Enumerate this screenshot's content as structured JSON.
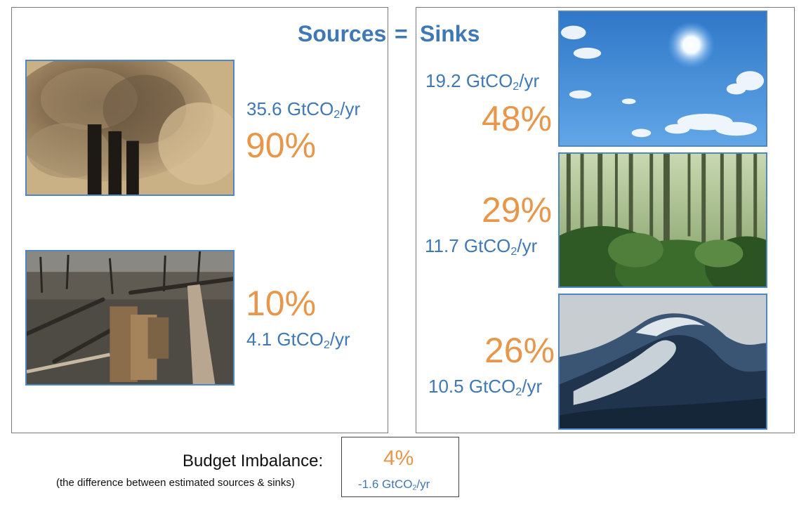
{
  "title": {
    "sources": "Sources",
    "equals": "=",
    "sinks": "Sinks"
  },
  "unit": {
    "prefix": "GtCO",
    "sub": "2",
    "suffix": "/yr"
  },
  "sources": [
    {
      "name": "fossil-emissions",
      "amount": "35.6",
      "percent": "90%"
    },
    {
      "name": "land-use-change",
      "amount": "4.1",
      "percent": "10%"
    }
  ],
  "sinks": [
    {
      "name": "atmosphere",
      "amount": "19.2",
      "percent": "48%"
    },
    {
      "name": "land",
      "amount": "11.7",
      "percent": "29%"
    },
    {
      "name": "ocean",
      "amount": "10.5",
      "percent": "26%"
    }
  ],
  "imbalance": {
    "label": "Budget Imbalance:",
    "note": "(the difference between estimated sources & sinks)",
    "percent": "4%",
    "amount": "-1.6"
  },
  "colors": {
    "blue": "#3f78b5",
    "orange": "#e8964a",
    "border": "#7a7a7a",
    "photo_border": "#4f86c6"
  },
  "icons": [
    "smokestack-image",
    "deforestation-image",
    "sky-image",
    "forest-image",
    "ocean-wave-image"
  ]
}
